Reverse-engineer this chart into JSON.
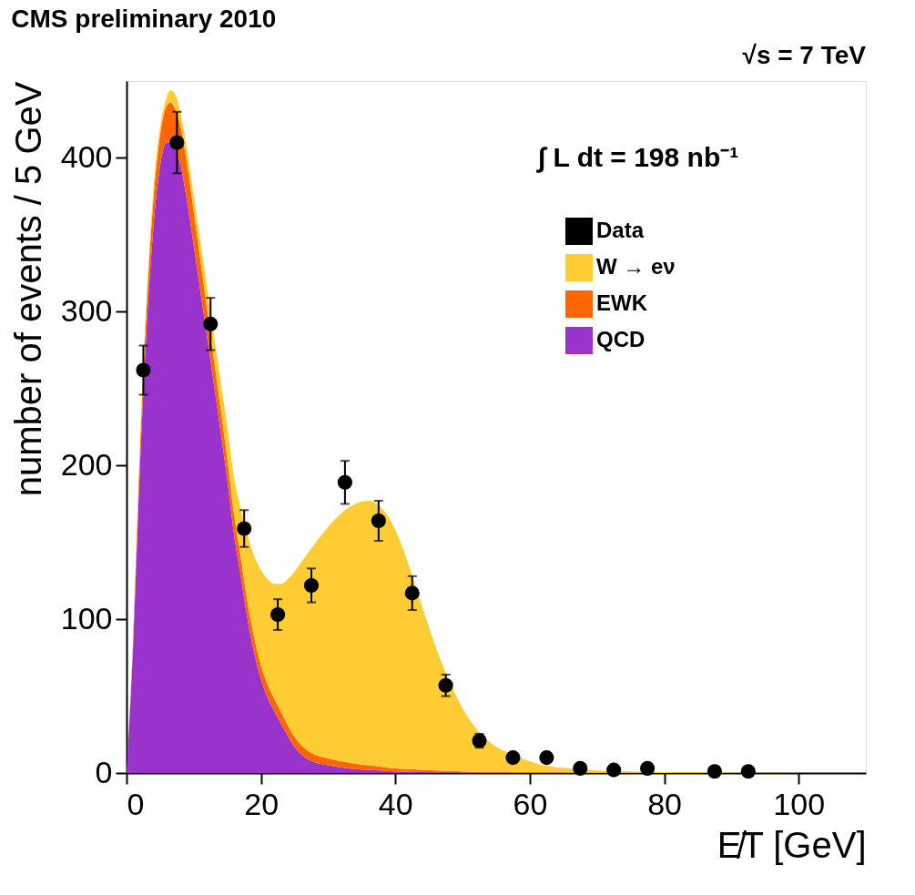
{
  "chart_data": {
    "type": "area",
    "title": "CMS preliminary 2010",
    "annotations": [
      "√s = 7 TeV",
      "∫ L dt = 198 nb⁻¹"
    ],
    "xlabel": "E̸T [GeV]",
    "ylabel": "number of events / 5 GeV",
    "xlim": [
      0,
      110
    ],
    "xticks": [
      0,
      20,
      40,
      60,
      80,
      100
    ],
    "ylim": [
      0,
      450
    ],
    "yticks": [
      0,
      100,
      200,
      300,
      400
    ],
    "stacked": true,
    "legend": "top right",
    "grid": false,
    "series": [
      {
        "name": "Data",
        "type": "scatter",
        "marker": "circle",
        "color": "#000000",
        "x": [
          2.5,
          7.5,
          12.5,
          17.5,
          22.5,
          27.5,
          32.5,
          37.5,
          42.5,
          47.5,
          52.5,
          57.5,
          62.5,
          67.5,
          72.5,
          77.5,
          87.5,
          92.5
        ],
        "values": [
          262,
          410,
          292,
          159,
          103,
          122,
          189,
          164,
          117,
          57,
          21,
          10,
          10,
          3,
          2,
          3,
          1,
          1
        ],
        "errors": [
          16,
          20,
          17,
          12,
          10,
          11,
          14,
          13,
          11,
          7,
          4.5,
          3,
          3,
          1.7,
          1.4,
          1.7,
          1,
          1
        ]
      },
      {
        "name": "QCD",
        "color": "#9933cc",
        "x": [
          0,
          1,
          2,
          3,
          4,
          5,
          6,
          6.5,
          7,
          8,
          9,
          10,
          11,
          12,
          13,
          14,
          15,
          16,
          17,
          18,
          19,
          20,
          21,
          22,
          23,
          24,
          25,
          26,
          28,
          30,
          32,
          34,
          36,
          38,
          40,
          42,
          44,
          46,
          48,
          50,
          52,
          55,
          58,
          62,
          66,
          70,
          75,
          80,
          90,
          100
        ],
        "values": [
          0,
          85,
          200,
          290,
          355,
          395,
          410,
          410,
          408,
          396,
          372,
          343,
          313,
          283,
          253,
          222,
          190,
          155,
          128,
          100,
          78,
          61,
          49,
          40,
          32,
          24,
          17,
          12,
          7,
          5,
          3.5,
          2.5,
          2,
          1.5,
          1,
          0.8,
          0.6,
          0.5,
          0.4,
          0.3,
          0.2,
          0.2,
          0.1,
          0.1,
          0.1,
          0,
          0,
          0,
          0,
          0
        ]
      },
      {
        "name": "EWK",
        "color": "#ff6600",
        "x": [
          0,
          1,
          2,
          3,
          4,
          5,
          6,
          6.5,
          7,
          8,
          9,
          10,
          11,
          12,
          13,
          14,
          15,
          16,
          17,
          18,
          19,
          20,
          21,
          22,
          23,
          24,
          25,
          26,
          28,
          30,
          32,
          34,
          36,
          38,
          40,
          42,
          44,
          46,
          48,
          50,
          52,
          55,
          58,
          62,
          66,
          70,
          75,
          80,
          90,
          100
        ],
        "values": [
          0,
          4,
          10,
          15,
          18,
          20,
          24,
          26,
          26,
          25,
          24,
          22,
          20,
          18,
          16,
          15,
          14,
          13,
          12,
          11,
          10,
          9,
          8.5,
          8,
          7.5,
          7,
          6.5,
          6,
          5,
          4.5,
          4,
          3.5,
          3,
          2.5,
          2,
          1.7,
          1.5,
          1.2,
          1,
          0.8,
          0.6,
          0.5,
          0.4,
          0.3,
          0.2,
          0.1,
          0.1,
          0,
          0,
          0
        ]
      },
      {
        "name": "W → eν",
        "color": "#ffcc33",
        "x": [
          0,
          1,
          2,
          3,
          4,
          5,
          6,
          6.5,
          7,
          8,
          9,
          10,
          11,
          12,
          13,
          14,
          15,
          16,
          17,
          18,
          19,
          20,
          21,
          22,
          23,
          24,
          25,
          26,
          28,
          30,
          32,
          34,
          36,
          38,
          40,
          42,
          44,
          46,
          48,
          50,
          52,
          55,
          58,
          62,
          66,
          70,
          75,
          80,
          90,
          100
        ],
        "values": [
          0,
          1,
          5,
          5,
          7,
          5,
          6,
          8,
          9,
          9,
          9,
          10,
          12,
          14,
          16,
          18,
          21,
          24,
          32,
          44,
          53,
          62,
          68.5,
          75,
          83.5,
          95,
          107.5,
          119,
          137,
          150.5,
          161.5,
          169,
          172,
          168,
          155,
          132.5,
          105.9,
          80.3,
          58.6,
          40.9,
          28.2,
          16.3,
          10.5,
          4.6,
          2.7,
          1.6,
          0.9,
          0.6,
          0.3,
          0.1
        ]
      }
    ]
  }
}
